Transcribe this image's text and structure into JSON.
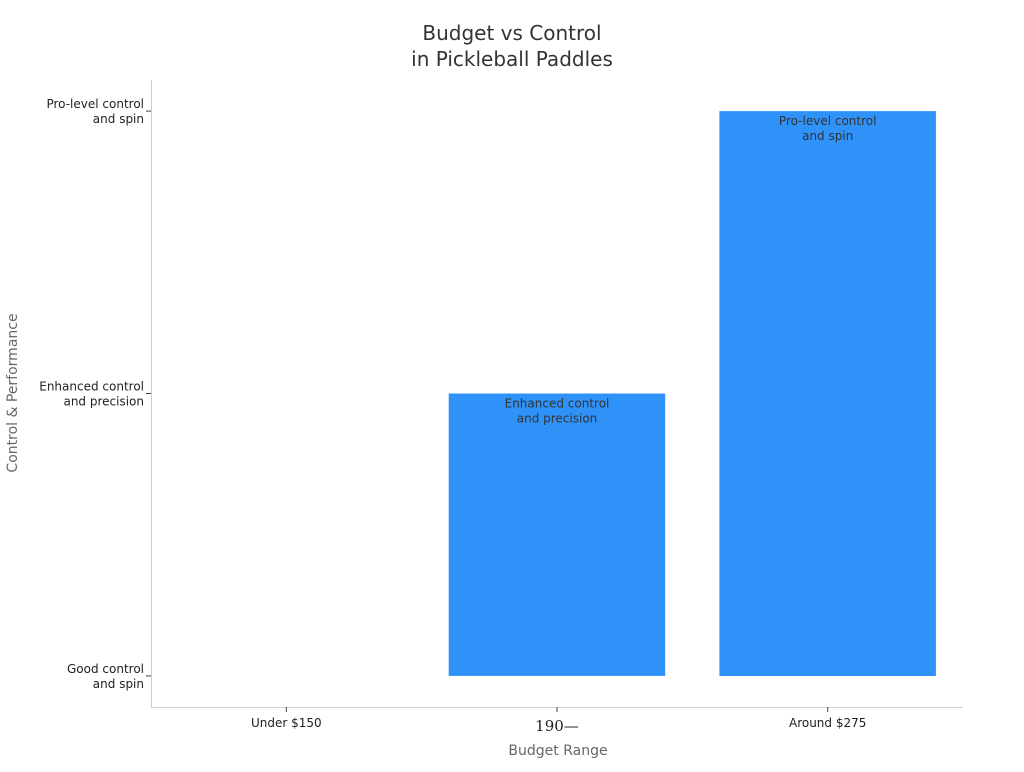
{
  "chart_data": {
    "type": "bar",
    "title": [
      "Budget vs Control",
      "in Pickleball Paddles"
    ],
    "xlabel": "Budget Range",
    "ylabel": "Control & Performance",
    "categories": [
      "Under $150",
      "190—",
      "Around $275"
    ],
    "values": [
      0,
      1,
      2
    ],
    "y_ticks": [
      {
        "value": 0,
        "label": [
          "Good control",
          "and spin"
        ]
      },
      {
        "value": 1,
        "label": [
          "Enhanced control",
          "and precision"
        ]
      },
      {
        "value": 2,
        "label": [
          "Pro-level control",
          "and spin"
        ]
      }
    ],
    "data_labels": [
      null,
      [
        "Enhanced control",
        "and precision"
      ],
      [
        "Pro-level control",
        "and spin"
      ]
    ],
    "ylim": [
      -0.11,
      2.11
    ],
    "bar_color": "#2f92f8",
    "grid": false,
    "legend": "none"
  }
}
